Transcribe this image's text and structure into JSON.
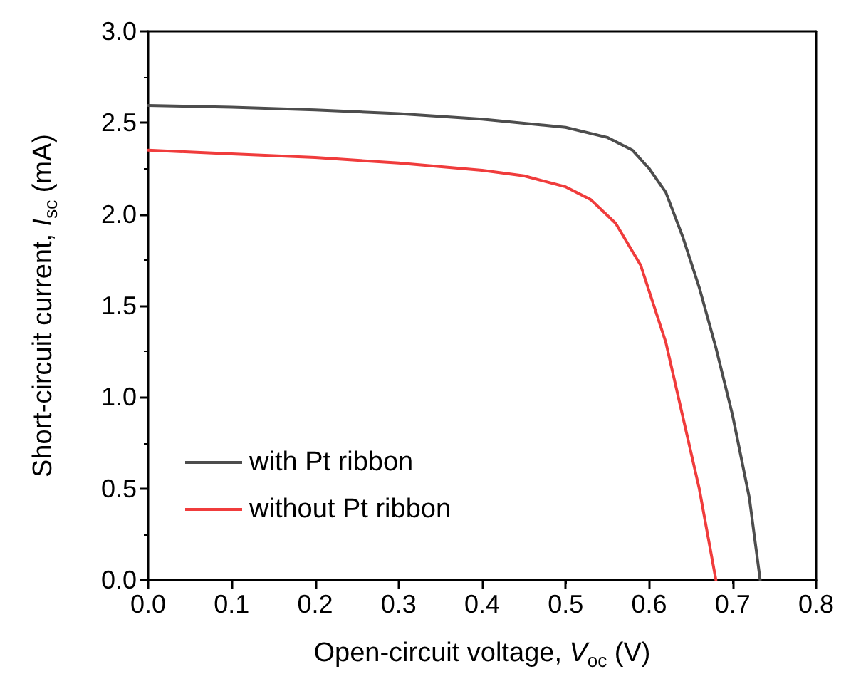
{
  "chart_data": {
    "type": "line",
    "xlabel": "Open-circuit voltage, V$_{oc}$ (V)",
    "ylabel": "Short-circuit current, I$_{sc}$ (mA)",
    "xlim": [
      0,
      0.8
    ],
    "xticks": [
      {
        "value": 0,
        "label": "0.0"
      },
      0.1,
      0.2,
      0.3,
      0.4,
      0.5,
      0.6,
      0.7,
      0.8
    ],
    "ylim": [
      0,
      3
    ],
    "yticks": [
      {
        "value": 0,
        "label": "0.0"
      },
      0.5,
      {
        "value": 1,
        "label": "1.0"
      },
      1.5,
      {
        "value": 2,
        "label": "2.0"
      },
      2.5,
      {
        "value": 3,
        "label": "3.0"
      }
    ],
    "grid": false,
    "legend": "bottom left",
    "marker": "none",
    "line_style": "solid",
    "series": [
      {
        "name": "with Pt ribbon",
        "color": "#4d4d4d",
        "x": [
          0,
          0.1,
          0.2,
          0.3,
          0.4,
          0.5,
          0.55,
          0.58,
          0.6,
          0.62,
          0.64,
          0.66,
          0.68,
          0.7,
          0.72,
          0.733
        ],
        "values": [
          2.595,
          2.585,
          2.57,
          2.55,
          2.52,
          2.475,
          2.42,
          2.35,
          2.25,
          2.12,
          1.88,
          1.6,
          1.27,
          0.9,
          0.45,
          0
        ]
      },
      {
        "name": "without Pt ribbon",
        "color": "#f03c3c",
        "x": [
          0,
          0.1,
          0.2,
          0.3,
          0.4,
          0.45,
          0.5,
          0.53,
          0.56,
          0.59,
          0.62,
          0.64,
          0.66,
          0.68
        ],
        "values": [
          2.35,
          2.33,
          2.31,
          2.28,
          2.24,
          2.21,
          2.15,
          2.08,
          1.95,
          1.72,
          1.3,
          0.9,
          0.5,
          0
        ]
      }
    ]
  }
}
